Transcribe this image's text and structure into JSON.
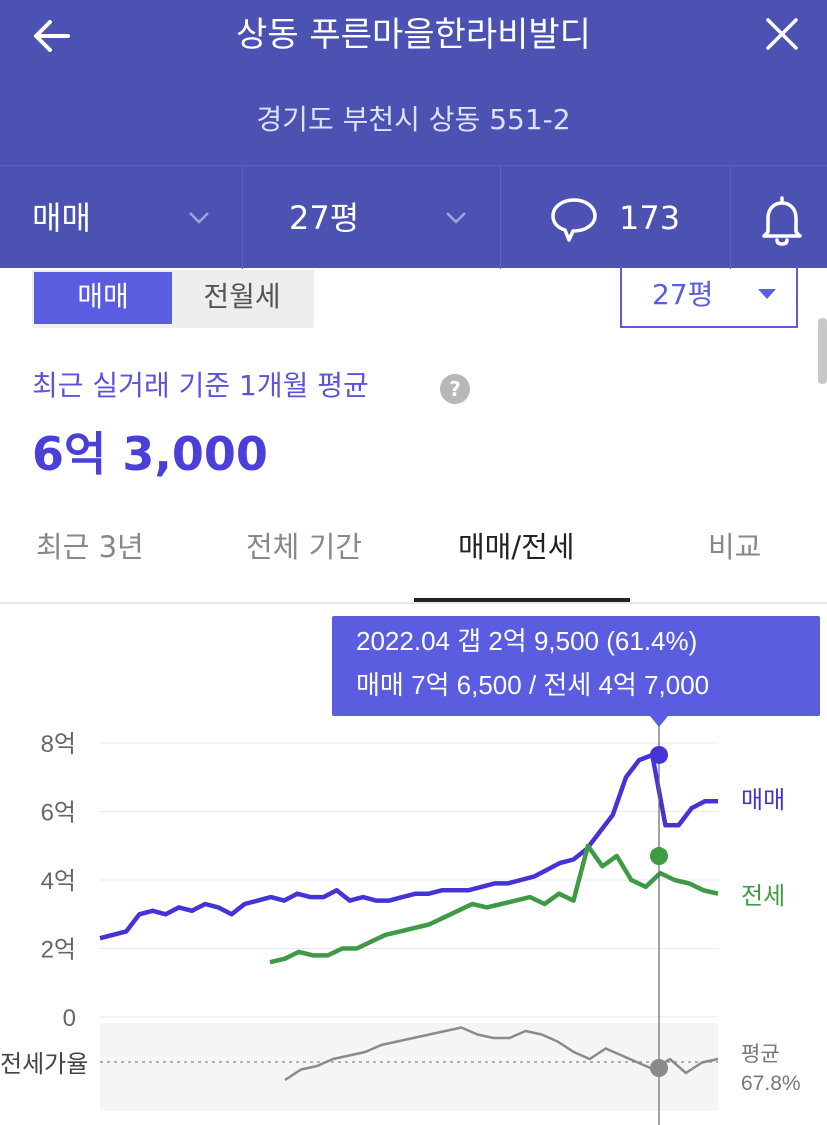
{
  "header": {
    "back_icon": "arrow-left-icon",
    "title": "상동 푸른마을한라비발디",
    "close_icon": "close-icon",
    "address": "경기도 부천시 상동 551-2",
    "filters": {
      "trade_type": "매매",
      "size": "27평",
      "comment_count": "173",
      "comment_icon": "speech-bubble-icon",
      "bell_icon": "bell-icon"
    }
  },
  "toggle": {
    "sale": "매매",
    "rent": "전월세",
    "size_select": "27평"
  },
  "summary": {
    "label": "최근 실거래 기준 1개월 평균",
    "help": "?",
    "value": "6억 3,000"
  },
  "tabs": [
    {
      "label": "최근 3년",
      "active": false
    },
    {
      "label": "전체 기간",
      "active": false
    },
    {
      "label": "매매/전세",
      "active": true
    },
    {
      "label": "비교",
      "active": false
    }
  ],
  "colors": {
    "header": "#4b52b2",
    "accent": "#5a5de0",
    "sale": "#4434d8",
    "jeonse": "#3f9a45",
    "ratio": "#8a8a8a"
  },
  "chart_data": {
    "type": "line",
    "y_ticks": [
      "8억",
      "6억",
      "4억",
      "2억",
      "0"
    ],
    "ylim": [
      0,
      8
    ],
    "ratio_label": "전세가율",
    "ratio_avg_label": "평균",
    "ratio_avg_value": "67.8%",
    "tooltip": {
      "line1": "2022.04  갭 2억 9,500 (61.4%)",
      "line2": "매매 7억 6,500 / 전세 4억 7,000"
    },
    "series": [
      {
        "name": "매매",
        "values": [
          2.3,
          2.4,
          2.5,
          3.0,
          3.1,
          3.0,
          3.2,
          3.1,
          3.3,
          3.2,
          3.0,
          3.3,
          3.4,
          3.5,
          3.4,
          3.6,
          3.5,
          3.5,
          3.7,
          3.4,
          3.5,
          3.4,
          3.4,
          3.5,
          3.6,
          3.6,
          3.7,
          3.7,
          3.7,
          3.8,
          3.9,
          3.9,
          4.0,
          4.1,
          4.3,
          4.5,
          4.6,
          4.9,
          5.4,
          5.9,
          7.0,
          7.5,
          7.65,
          5.6,
          5.6,
          6.1,
          6.3,
          6.3
        ]
      },
      {
        "name": "전세",
        "values": [
          1.6,
          1.7,
          1.9,
          1.8,
          1.8,
          2.0,
          2.0,
          2.2,
          2.4,
          2.5,
          2.6,
          2.7,
          2.9,
          3.1,
          3.3,
          3.2,
          3.3,
          3.4,
          3.5,
          3.3,
          3.6,
          3.4,
          5.0,
          4.4,
          4.7,
          4.0,
          3.8,
          4.2,
          4.0,
          3.9,
          3.7,
          3.6
        ]
      },
      {
        "name": "전세가율",
        "values": [
          0.3,
          0.45,
          0.5,
          0.6,
          0.65,
          0.7,
          0.8,
          0.85,
          0.9,
          0.95,
          1.0,
          1.05,
          0.95,
          0.9,
          0.9,
          1.0,
          0.95,
          0.85,
          0.7,
          0.6,
          0.75,
          0.65,
          0.55,
          0.45,
          0.6,
          0.4,
          0.55,
          0.6
        ]
      }
    ]
  }
}
